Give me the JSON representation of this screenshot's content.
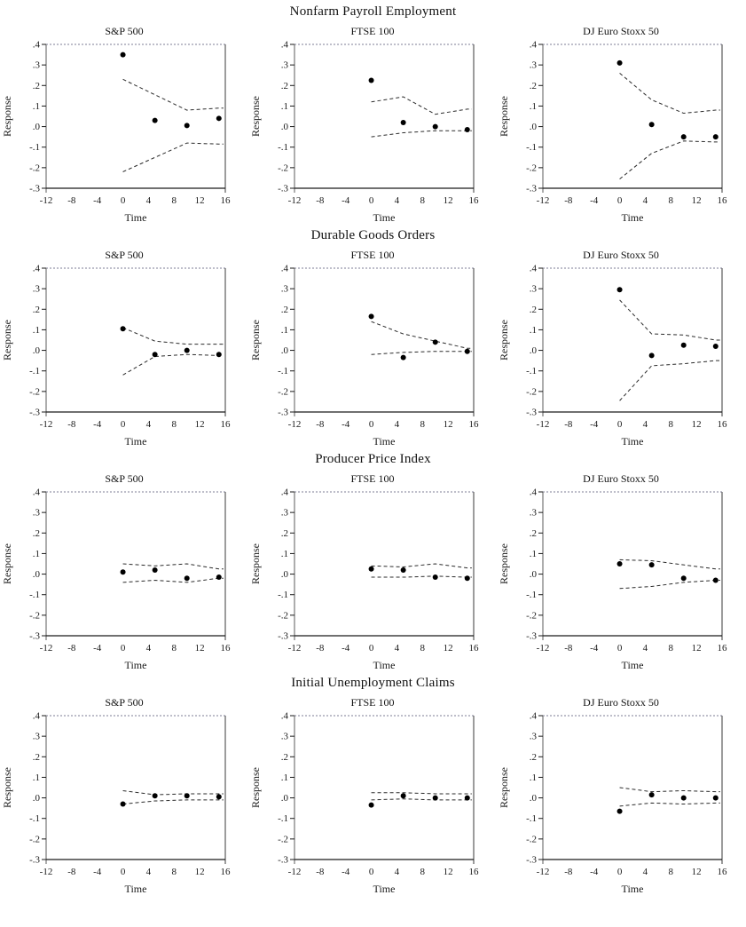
{
  "colors": {
    "point": "#000000",
    "band": "#2b2b2b",
    "axis": "#1a1a1a",
    "frame_light": "#a9a9b8",
    "frame_side": "#8a8a8a"
  },
  "chart_data": {
    "type": "scatter",
    "description": "Impulse response functions with dashed confidence bands",
    "shared": {
      "xlabel": "Time",
      "ylabel": "Response",
      "xlim": [
        -12,
        16
      ],
      "ylim": [
        -0.3,
        0.4
      ],
      "x": [
        0,
        5,
        10,
        15
      ],
      "xticks": [
        -12,
        -8,
        -4,
        0,
        4,
        8,
        12,
        16
      ],
      "xtick_labels": [
        "-12",
        "-8",
        "-4",
        "0",
        "4",
        "8",
        "12",
        "16"
      ],
      "yticks": [
        0.4,
        0.3,
        0.2,
        0.1,
        0.0,
        -0.1,
        -0.2,
        -0.3
      ],
      "ytick_labels": [
        ".4",
        ".3",
        ".2",
        ".1",
        ".0",
        "-.1",
        "-.2",
        "-.3"
      ],
      "grid": false,
      "legend": "none",
      "band_extend_x": 15.7
    },
    "rows": [
      {
        "title": "Nonfarm Payroll Employment",
        "charts": [
          {
            "title": "S&P 500",
            "points": [
              0.35,
              0.03,
              0.005,
              0.04
            ],
            "upper": [
              0.23,
              0.155,
              0.08,
              0.09
            ],
            "lower": [
              -0.22,
              -0.15,
              -0.08,
              -0.085
            ]
          },
          {
            "title": "FTSE 100",
            "points": [
              0.225,
              0.02,
              0.0,
              -0.015
            ],
            "upper": [
              0.12,
              0.145,
              0.06,
              0.085
            ],
            "lower": [
              -0.05,
              -0.03,
              -0.02,
              -0.02
            ]
          },
          {
            "title": "DJ Euro Stoxx 50",
            "points": [
              0.31,
              0.01,
              -0.05,
              -0.05
            ],
            "upper": [
              0.26,
              0.13,
              0.065,
              0.08
            ],
            "lower": [
              -0.255,
              -0.13,
              -0.07,
              -0.075
            ]
          }
        ]
      },
      {
        "title": "Durable Goods Orders",
        "charts": [
          {
            "title": "S&P 500",
            "points": [
              0.105,
              -0.02,
              0.0,
              -0.02
            ],
            "upper": [
              0.11,
              0.045,
              0.03,
              0.03
            ],
            "lower": [
              -0.12,
              -0.03,
              -0.02,
              -0.025
            ]
          },
          {
            "title": "FTSE 100",
            "points": [
              0.165,
              -0.035,
              0.04,
              -0.005
            ],
            "upper": [
              0.14,
              0.08,
              0.045,
              0.01
            ],
            "lower": [
              -0.02,
              -0.01,
              -0.005,
              -0.005
            ]
          },
          {
            "title": "DJ Euro Stoxx 50",
            "points": [
              0.295,
              -0.025,
              0.025,
              0.02
            ],
            "upper": [
              0.245,
              0.08,
              0.075,
              0.05
            ],
            "lower": [
              -0.245,
              -0.075,
              -0.065,
              -0.05
            ]
          }
        ]
      },
      {
        "title": "Producer Price Index",
        "charts": [
          {
            "title": "S&P 500",
            "points": [
              0.01,
              0.02,
              -0.02,
              -0.015
            ],
            "upper": [
              0.05,
              0.04,
              0.05,
              0.025
            ],
            "lower": [
              -0.04,
              -0.03,
              -0.04,
              -0.02
            ]
          },
          {
            "title": "FTSE 100",
            "points": [
              0.025,
              0.02,
              -0.015,
              -0.02
            ],
            "upper": [
              0.04,
              0.035,
              0.05,
              0.03
            ],
            "lower": [
              -0.015,
              -0.015,
              -0.01,
              -0.015
            ]
          },
          {
            "title": "DJ Euro Stoxx 50",
            "points": [
              0.05,
              0.045,
              -0.02,
              -0.03
            ],
            "upper": [
              0.07,
              0.065,
              0.045,
              0.025
            ],
            "lower": [
              -0.07,
              -0.06,
              -0.04,
              -0.03
            ]
          }
        ]
      },
      {
        "title": "Initial Unemployment Claims",
        "charts": [
          {
            "title": "S&P 500",
            "points": [
              -0.03,
              0.01,
              0.01,
              0.005
            ],
            "upper": [
              0.035,
              0.015,
              0.02,
              0.02
            ],
            "lower": [
              -0.03,
              -0.015,
              -0.01,
              -0.01
            ]
          },
          {
            "title": "FTSE 100",
            "points": [
              -0.035,
              0.01,
              0.0,
              0.0
            ],
            "upper": [
              0.025,
              0.025,
              0.02,
              0.02
            ],
            "lower": [
              -0.01,
              -0.005,
              -0.01,
              -0.01
            ]
          },
          {
            "title": "DJ Euro Stoxx 50",
            "points": [
              -0.065,
              0.015,
              0.0,
              0.0
            ],
            "upper": [
              0.05,
              0.03,
              0.035,
              0.03
            ],
            "lower": [
              -0.04,
              -0.025,
              -0.03,
              -0.025
            ]
          }
        ]
      }
    ]
  }
}
